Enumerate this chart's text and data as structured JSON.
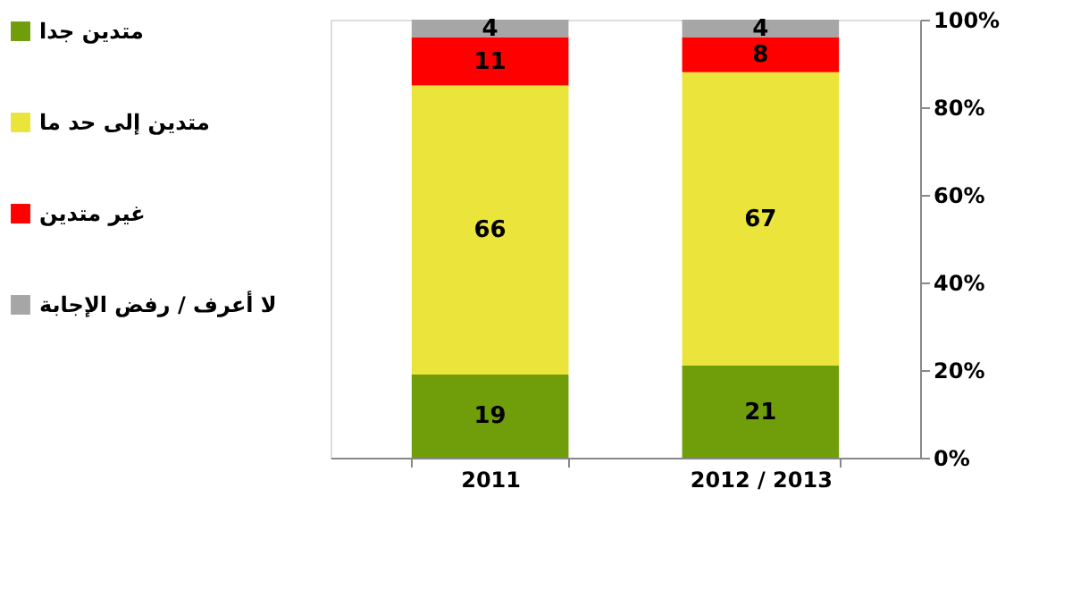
{
  "chart_data": {
    "type": "bar",
    "stacked": true,
    "categories": [
      "2011",
      "2012 / 2013"
    ],
    "series": [
      {
        "name": "متدين جدا",
        "color": "#6f9e0a",
        "values": [
          19,
          21
        ]
      },
      {
        "name": "متدين إلى حد ما",
        "color": "#ebe43a",
        "values": [
          66,
          67
        ]
      },
      {
        "name": "غير متدين",
        "color": "#ff0000",
        "values": [
          11,
          8
        ]
      },
      {
        "name": "لا أعرف / رفض الإجابة",
        "color": "#a6a6a6",
        "values": [
          4,
          4
        ]
      }
    ],
    "ylim": [
      0,
      100
    ],
    "yticks": [
      {
        "value": 0,
        "label": "0%"
      },
      {
        "value": 20,
        "label": "20%"
      },
      {
        "value": 40,
        "label": "40%"
      },
      {
        "value": 60,
        "label": "60%"
      },
      {
        "value": 80,
        "label": "80%"
      },
      {
        "value": 100,
        "label": "100%"
      }
    ],
    "data_labels": true,
    "grid": false,
    "legend": "left"
  }
}
